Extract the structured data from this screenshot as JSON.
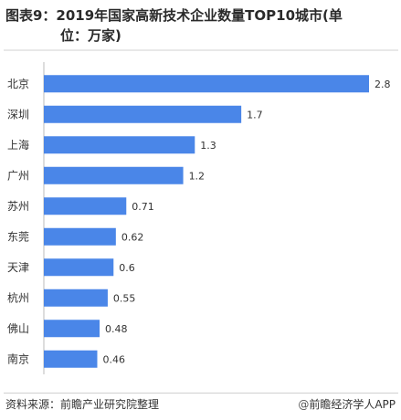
{
  "title": {
    "line1": "图表9：2019年国家高新技术企业数量TOP10城市(单",
    "line2": "位：万家)"
  },
  "chart_data": {
    "type": "bar",
    "orientation": "horizontal",
    "categories": [
      "北京",
      "深圳",
      "上海",
      "广州",
      "苏州",
      "东莞",
      "天津",
      "杭州",
      "佛山",
      "南京"
    ],
    "values": [
      2.8,
      1.7,
      1.3,
      1.2,
      0.71,
      0.62,
      0.6,
      0.55,
      0.48,
      0.46
    ],
    "value_labels": [
      "2.8",
      "1.7",
      "1.3",
      "1.2",
      "0.71",
      "0.62",
      "0.6",
      "0.55",
      "0.48",
      "0.46"
    ],
    "bar_color": "#4a86e8",
    "xlim": [
      0,
      2.8
    ],
    "grid": false,
    "legend": "none"
  },
  "footer": {
    "source": "资料来源：前瞻产业研究院整理",
    "credit_symbol": "@",
    "credit": "前瞻经济学人APP"
  }
}
